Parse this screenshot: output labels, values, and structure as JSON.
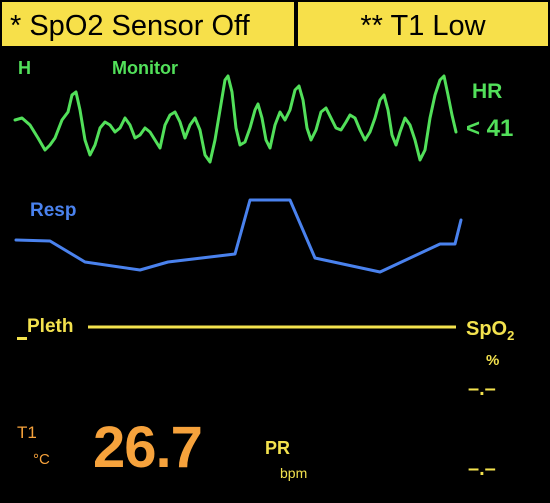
{
  "alarms": {
    "primary": "* SpO2 Sensor Off",
    "secondary": "** T1 Low"
  },
  "ecg": {
    "lead": "H",
    "mode": "Monitor",
    "color": "#52e05a"
  },
  "hr": {
    "label": "HR",
    "value": "< 41",
    "color": "#52e05a"
  },
  "resp": {
    "label": "Resp",
    "color": "#4a82ee"
  },
  "pleth": {
    "label": "Pleth",
    "color": "#f3e24e"
  },
  "spo2": {
    "label_main": "SpO",
    "label_sub": "2",
    "unit": "%",
    "value": "–.–"
  },
  "temp": {
    "label": "T1",
    "unit": "°C",
    "value": "26.7",
    "color": "#f6a23c"
  },
  "pr": {
    "label": "PR",
    "unit": "bpm",
    "value": "–.–"
  }
}
